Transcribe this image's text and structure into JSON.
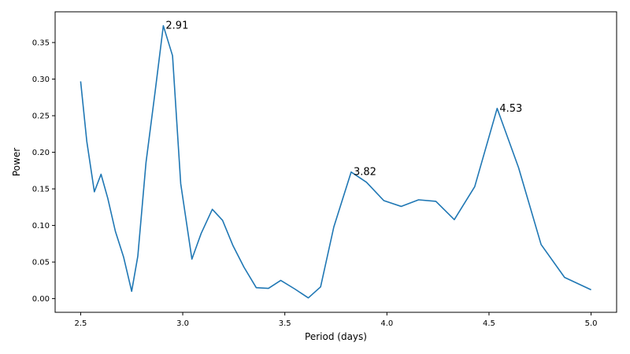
{
  "chart_data": {
    "type": "line",
    "title": "",
    "xlabel": "Period (days)",
    "ylabel": "Power",
    "xlim": [
      2.375,
      5.125
    ],
    "ylim": [
      -0.0187,
      0.392
    ],
    "xticks": [
      2.5,
      3.0,
      3.5,
      4.0,
      4.5,
      5.0
    ],
    "xtick_labels": [
      "2.5",
      "3.0",
      "3.5",
      "4.0",
      "4.5",
      "5.0"
    ],
    "yticks": [
      0.0,
      0.05,
      0.1,
      0.15,
      0.2,
      0.25,
      0.3,
      0.35
    ],
    "ytick_labels": [
      "0.00",
      "0.05",
      "0.10",
      "0.15",
      "0.20",
      "0.25",
      "0.30",
      "0.35"
    ],
    "grid": false,
    "color": "#1f77b4",
    "series": [
      {
        "x": [
          2.5,
          2.53,
          2.567,
          2.6,
          2.633,
          2.67,
          2.71,
          2.75,
          2.78,
          2.82,
          2.865,
          2.905,
          2.95,
          2.99,
          3.045,
          3.09,
          3.145,
          3.195,
          3.245,
          3.3,
          3.36,
          3.42,
          3.48,
          3.55,
          3.615,
          3.675,
          3.74,
          3.825,
          3.9,
          3.985,
          4.07,
          4.155,
          4.24,
          4.33,
          4.43,
          4.54,
          4.645,
          4.755,
          4.87,
          5.0
        ],
        "y": [
          0.297,
          0.215,
          0.146,
          0.17,
          0.137,
          0.092,
          0.057,
          0.01,
          0.058,
          0.186,
          0.283,
          0.373,
          0.332,
          0.157,
          0.054,
          0.089,
          0.122,
          0.107,
          0.073,
          0.043,
          0.015,
          0.014,
          0.025,
          0.013,
          0.001,
          0.016,
          0.098,
          0.173,
          0.159,
          0.134,
          0.126,
          0.135,
          0.133,
          0.108,
          0.153,
          0.26,
          0.179,
          0.074,
          0.029,
          0.012
        ]
      }
    ],
    "annotations": [
      {
        "text": "2.91",
        "x": 2.905,
        "y": 0.373
      },
      {
        "text": "3.82",
        "x": 3.825,
        "y": 0.173
      },
      {
        "text": "4.53",
        "x": 4.54,
        "y": 0.26
      }
    ]
  }
}
